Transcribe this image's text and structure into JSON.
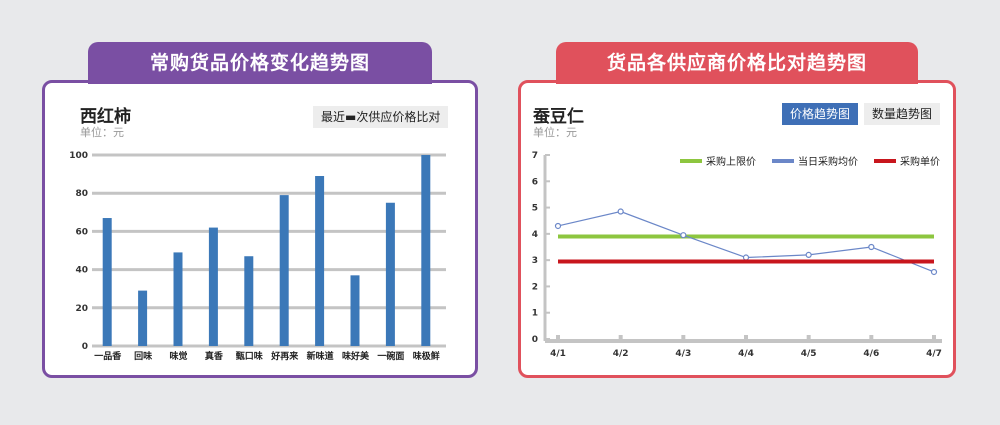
{
  "left": {
    "tab_title": "常购货品价格变化趋势图",
    "chart_title": "西红柿",
    "unit": "单位：元",
    "button": "最近▬次供应价格比对"
  },
  "right": {
    "tab_title": "货品各供应商价格比对趋势图",
    "chart_title": "蚕豆仁",
    "unit": "单位：元",
    "buttons": [
      "价格趋势图",
      "数量趋势图"
    ]
  },
  "colors": {
    "purple": "#7a4fa3",
    "red_border": "#e0515c",
    "bar": "#3b78b8",
    "upper_limit": "#8dc63f",
    "daily_avg": "#6b87c8",
    "unit_price": "#c8161d"
  },
  "chart_data": [
    {
      "type": "bar",
      "categories": [
        "一品香",
        "回味",
        "味觉",
        "真香",
        "甄口味",
        "好再来",
        "新味道",
        "味好美",
        "一碗面",
        "味极鲜"
      ],
      "values": [
        67,
        29,
        49,
        62,
        47,
        79,
        89,
        37,
        75,
        100
      ],
      "yticks": [
        "0",
        "20",
        "40",
        "60",
        "80",
        "100"
      ],
      "ylim": [
        0,
        100
      ],
      "grid": true
    },
    {
      "type": "line",
      "x": [
        "4/1",
        "4/2",
        "4/3",
        "4/4",
        "4/5",
        "4/6",
        "4/7"
      ],
      "yticks": [
        "0",
        "1",
        "2",
        "3",
        "4",
        "5",
        "6",
        "7"
      ],
      "ylim": [
        0,
        7
      ],
      "legend_position": "top-right",
      "series": [
        {
          "name": "采购上限价",
          "values": [
            3.9,
            3.9,
            3.9,
            3.9,
            3.9,
            3.9,
            3.9
          ],
          "color": "#8dc63f"
        },
        {
          "name": "当日采购均价",
          "values": [
            4.3,
            4.85,
            3.95,
            3.1,
            3.2,
            3.5,
            2.55
          ],
          "color": "#6b87c8"
        },
        {
          "name": "采购单价",
          "values": [
            2.95,
            2.95,
            2.95,
            2.95,
            2.95,
            2.95,
            2.95
          ],
          "color": "#c8161d"
        }
      ]
    }
  ]
}
